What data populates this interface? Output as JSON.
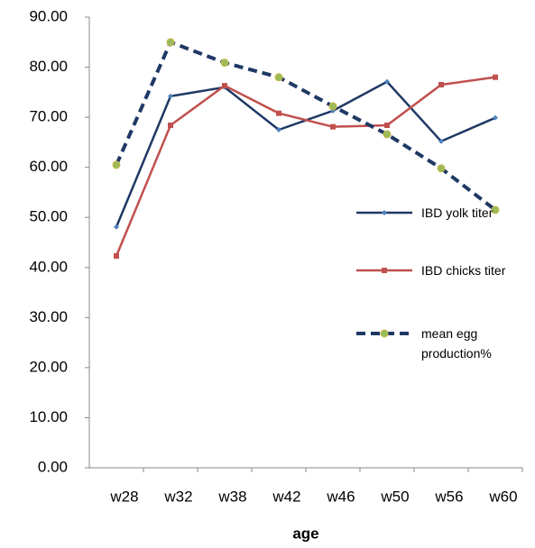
{
  "chart_data": {
    "type": "line",
    "x_label": "age",
    "categories": [
      "w28",
      "w32",
      "w38",
      "w42",
      "w46",
      "w50",
      "w56",
      "w60"
    ],
    "series": [
      {
        "name": "IBD yolk titer",
        "color": "#1f3864",
        "marker": "diamond",
        "dashed": false,
        "values": [
          48.1,
          74.2,
          76.0,
          67.5,
          71.3,
          77.1,
          65.2,
          69.9
        ]
      },
      {
        "name": "IBD chicks titer",
        "color": "#c0504d",
        "marker": "square",
        "dashed": false,
        "values": [
          42.3,
          68.4,
          76.3,
          70.8,
          68.1,
          68.4,
          76.5,
          78.0
        ]
      },
      {
        "name": "mean egg production%",
        "color": "#1f3864",
        "marker": "circle",
        "dashed": true,
        "values": [
          60.5,
          85.0,
          80.9,
          78.0,
          72.2,
          66.6,
          59.8,
          51.5
        ]
      }
    ],
    "ylim": [
      0,
      90
    ],
    "yticks": [
      {
        "value": 0,
        "label": "0.00"
      },
      {
        "value": 10,
        "label": "10.00"
      },
      {
        "value": 20,
        "label": "20.00"
      },
      {
        "value": 30,
        "label": "30.00"
      },
      {
        "value": 40,
        "label": "40.00"
      },
      {
        "value": 50,
        "label": "50.00"
      },
      {
        "value": 60,
        "label": "60.00"
      },
      {
        "value": 70,
        "label": "70.00"
      },
      {
        "value": 80,
        "label": "80.00"
      },
      {
        "value": 90,
        "label": "90.00"
      }
    ],
    "grid": false,
    "legend": "right"
  }
}
